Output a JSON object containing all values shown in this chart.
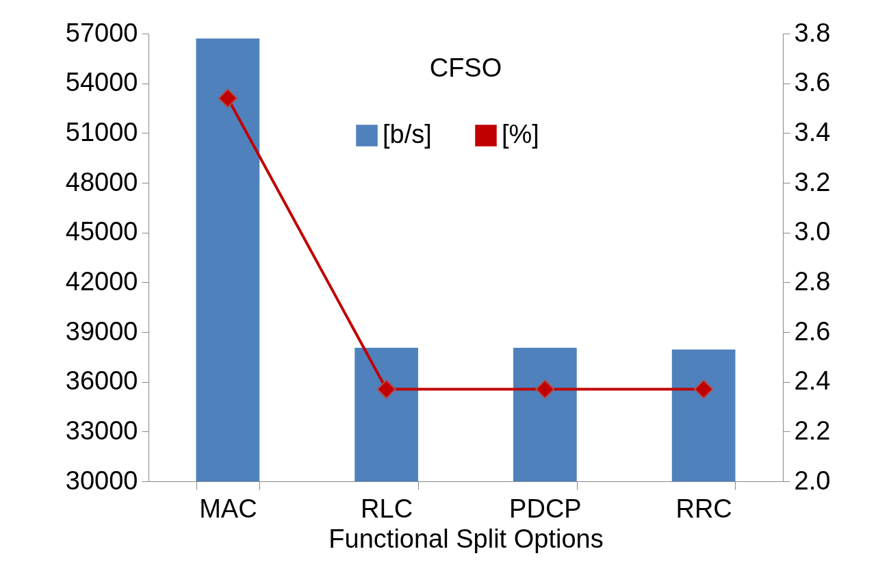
{
  "chart_data": {
    "type": "bar",
    "title": "CFSO",
    "xlabel": "Functional Split Options",
    "categories": [
      "MAC",
      "RLC",
      "PDCP",
      "RRC"
    ],
    "series": [
      {
        "name": "[b/s]",
        "color": "#4f81bd",
        "values": [
          56700,
          38050,
          38050,
          37950
        ]
      },
      {
        "name": "[%]",
        "color": "#c00000",
        "type": "line",
        "axis": "y2",
        "marker": "diamond",
        "values": [
          3.54,
          2.37,
          2.37,
          2.37
        ]
      }
    ],
    "ylim": [
      30000,
      57000
    ],
    "yticks": [
      30000,
      33000,
      36000,
      39000,
      42000,
      45000,
      48000,
      51000,
      54000,
      57000
    ],
    "y2lim": [
      2.0,
      3.8
    ],
    "y2ticks": [
      {
        "value": 2,
        "label": "2.0"
      },
      {
        "value": 2.2,
        "label": "2.2"
      },
      {
        "value": 2.4,
        "label": "2.4"
      },
      {
        "value": 2.6,
        "label": "2.6"
      },
      {
        "value": 2.8,
        "label": "2.8"
      },
      {
        "value": 3,
        "label": "3.0"
      },
      {
        "value": 3.2,
        "label": "3.2"
      },
      {
        "value": 3.4,
        "label": "3.4"
      },
      {
        "value": 3.6,
        "label": "3.6"
      },
      {
        "value": 3.8,
        "label": "3.8"
      }
    ],
    "grid": false,
    "legend": "top"
  }
}
